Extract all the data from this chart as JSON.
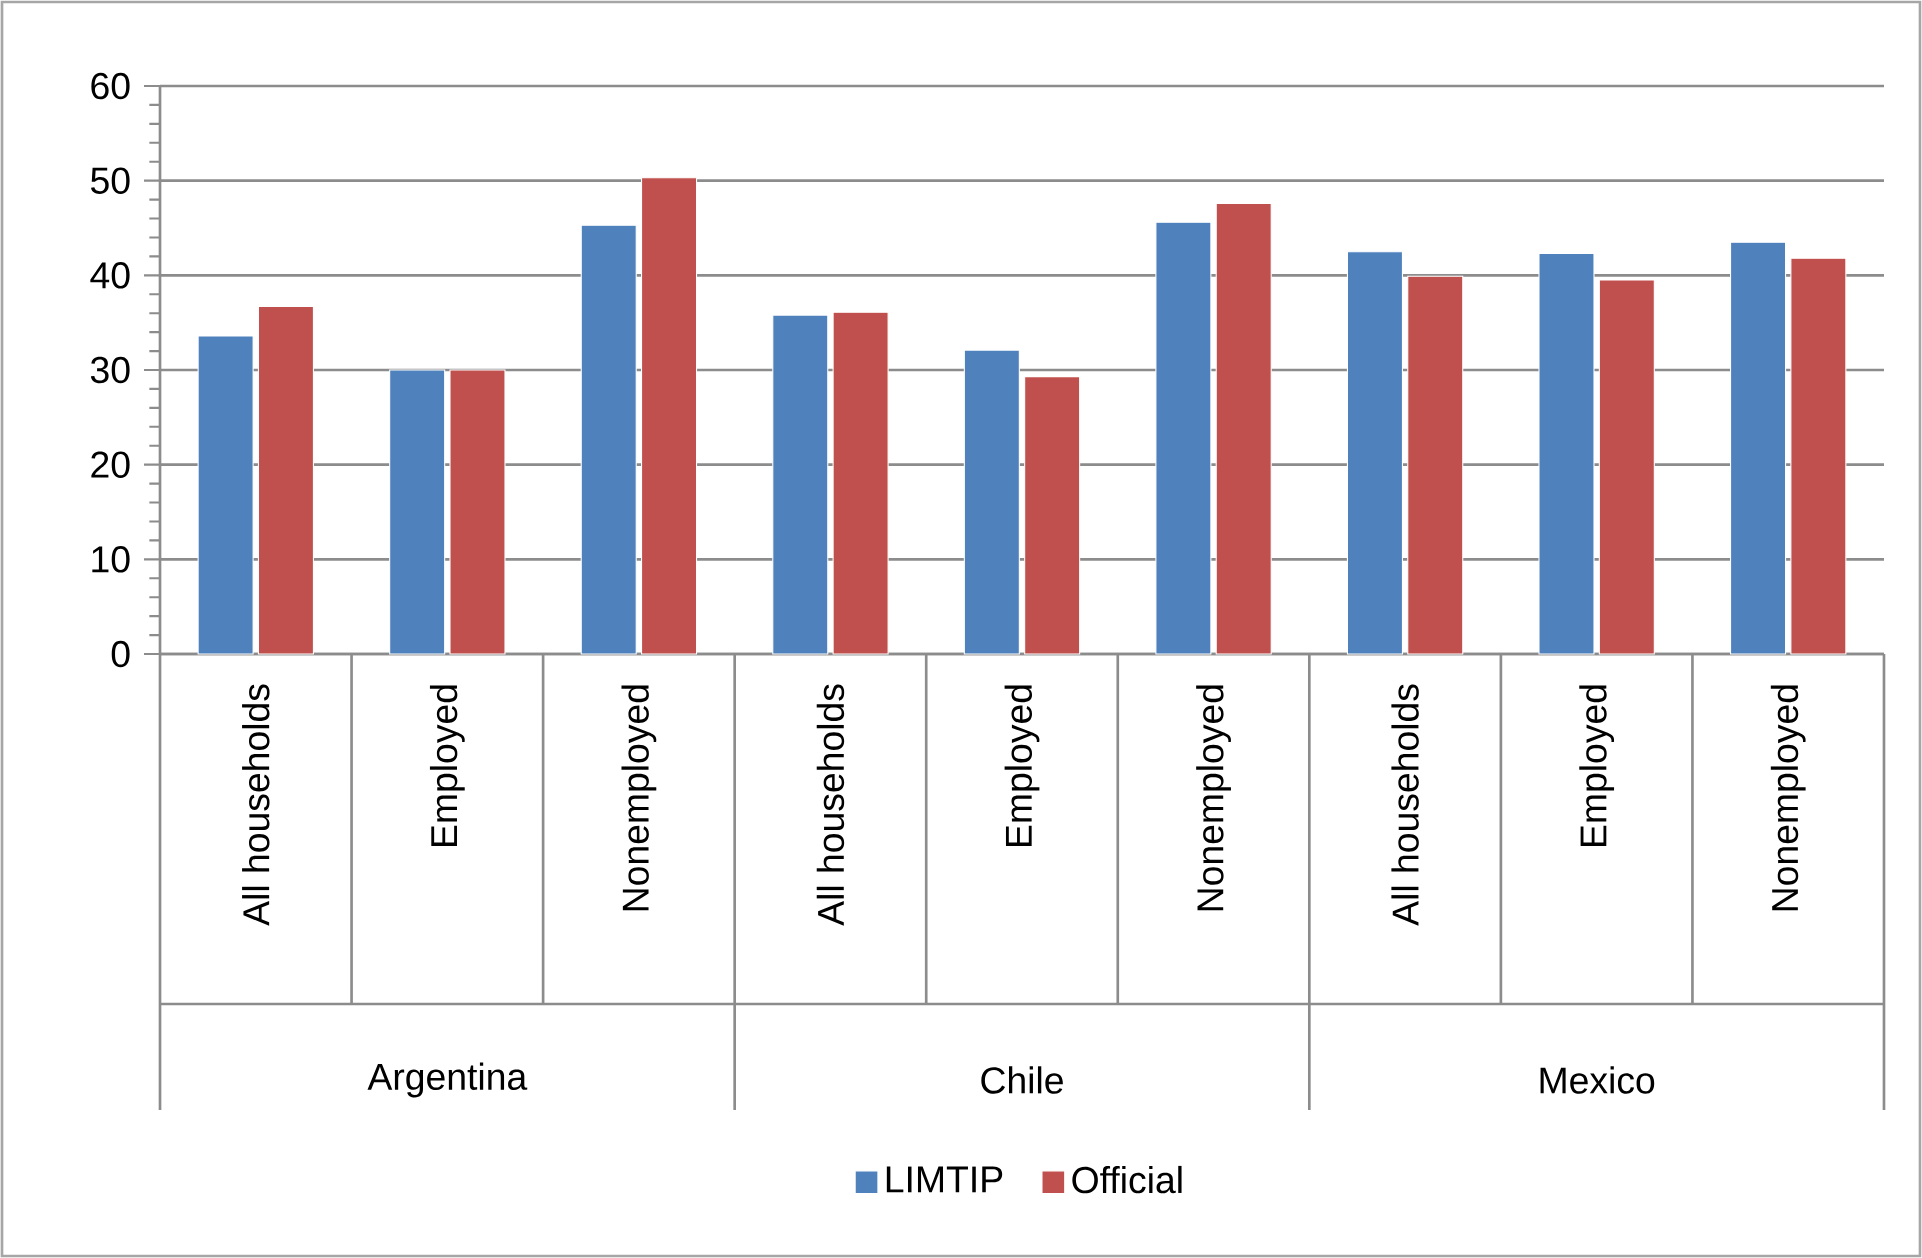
{
  "chart_data": {
    "type": "bar",
    "categories": [
      "All households",
      "Employed",
      "Nonemployed",
      "All households",
      "Employed",
      "Nonemployed",
      "All households",
      "Employed",
      "Nonemployed"
    ],
    "series": [
      {
        "name": "LIMTIP",
        "color": "#4f81bd",
        "values": [
          33.6,
          30.0,
          45.3,
          35.8,
          32.1,
          45.6,
          42.5,
          42.3,
          43.5
        ]
      },
      {
        "name": "Official",
        "color": "#c0504d",
        "values": [
          36.7,
          30.0,
          50.3,
          36.1,
          29.3,
          47.6,
          39.9,
          39.5,
          41.8
        ]
      }
    ],
    "annotations": [
      "Argentina",
      "Chile",
      "Mexico"
    ],
    "ylim": [
      0,
      60
    ],
    "yticks": [
      0,
      10,
      20,
      30,
      40,
      50,
      60
    ],
    "grid": "y",
    "legend": "bottom"
  }
}
